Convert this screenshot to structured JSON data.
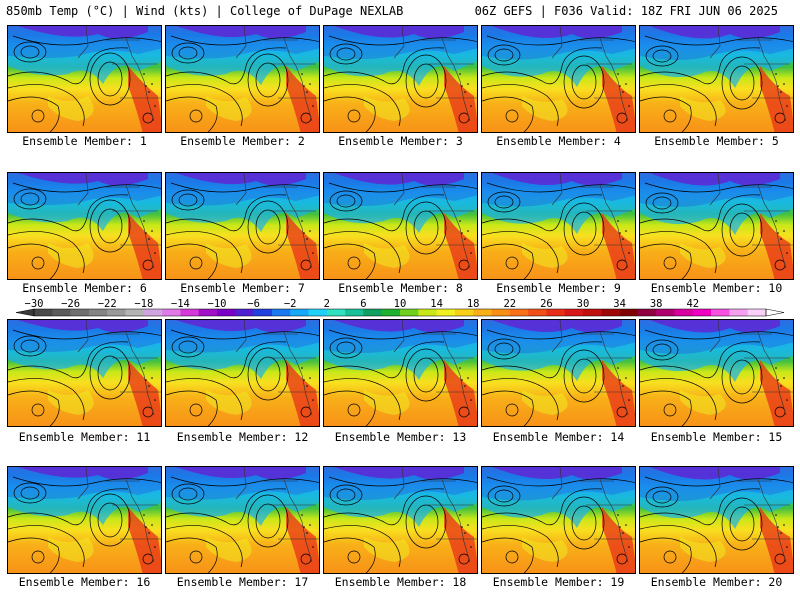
{
  "header": {
    "left": "850mb Temp (°C) | Wind (kts) | College of DuPage NEXLAB",
    "right": "06Z GEFS | F036 Valid: 18Z FRI JUN 06 2025"
  },
  "members": [
    "Ensemble Member: 1",
    "Ensemble Member: 2",
    "Ensemble Member: 3",
    "Ensemble Member: 4",
    "Ensemble Member: 5",
    "Ensemble Member: 6",
    "Ensemble Member: 7",
    "Ensemble Member: 8",
    "Ensemble Member: 9",
    "Ensemble Member: 10",
    "Ensemble Member: 11",
    "Ensemble Member: 12",
    "Ensemble Member: 13",
    "Ensemble Member: 14",
    "Ensemble Member: 15",
    "Ensemble Member: 16",
    "Ensemble Member: 17",
    "Ensemble Member: 18",
    "Ensemble Member: 19",
    "Ensemble Member: 20"
  ],
  "colorbar": {
    "labels": [
      "−30",
      "−26",
      "−22",
      "−18",
      "−14",
      "−10",
      "−6",
      "−2",
      "2",
      "6",
      "10",
      "14",
      "18",
      "22",
      "26",
      "30",
      "34",
      "38",
      "42"
    ],
    "colors": [
      "#4a4a4a",
      "#5c5c5c",
      "#707070",
      "#848484",
      "#9a9a9a",
      "#b4b4b4",
      "#cfa5df",
      "#e07ae8",
      "#d43ad8",
      "#a010c8",
      "#7a00c8",
      "#5020d0",
      "#2040e0",
      "#1a78f0",
      "#18a8f8",
      "#20d0f8",
      "#30e0c0",
      "#18c098",
      "#10a060",
      "#20b030",
      "#70d020",
      "#c8e818",
      "#f0f020",
      "#f8d018",
      "#f8b018",
      "#f89018",
      "#f87018",
      "#f05018",
      "#e83018",
      "#d81818",
      "#c01010",
      "#a00808",
      "#800000",
      "#900040",
      "#b00070",
      "#d800a0",
      "#f000c0",
      "#f850e0",
      "#f8a0f0",
      "#f8d0f8"
    ]
  }
}
